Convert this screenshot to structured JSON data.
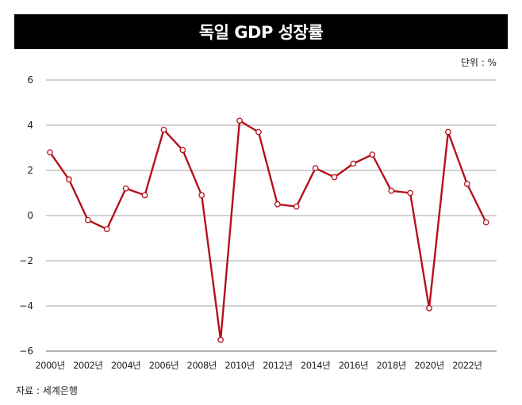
{
  "header": {
    "title": "독일 GDP 성장률"
  },
  "unit_label": "단위 : %",
  "source_label": "자료 : 세계은행",
  "colors": {
    "line": "#b5121b",
    "marker_fill": "#ffffff",
    "grid": "#888888",
    "title_bg": "#000000"
  },
  "chart_data": {
    "type": "line",
    "title": "독일 GDP 성장률",
    "xlabel": "",
    "ylabel": "%",
    "ylim": [
      -6,
      6
    ],
    "yticks": [
      6,
      4,
      2,
      0,
      -2,
      -4,
      -6
    ],
    "ytick_labels": [
      "6",
      "4",
      "2",
      "0",
      "−2",
      "−4",
      "−6"
    ],
    "xtick_years": [
      2000,
      2002,
      2004,
      2006,
      2008,
      2010,
      2012,
      2014,
      2016,
      2018,
      2020,
      2022
    ],
    "xtick_labels": [
      "2000년",
      "2002년",
      "2004년",
      "2006년",
      "2008년",
      "2010년",
      "2012년",
      "2014년",
      "2016년",
      "2018년",
      "2020년",
      "2022년"
    ],
    "series": [
      {
        "name": "독일 GDP 성장률",
        "x": [
          2000,
          2001,
          2002,
          2003,
          2004,
          2005,
          2006,
          2007,
          2008,
          2009,
          2010,
          2011,
          2012,
          2013,
          2014,
          2015,
          2016,
          2017,
          2018,
          2019,
          2020,
          2021,
          2022,
          2023
        ],
        "values": [
          2.8,
          1.6,
          -0.2,
          -0.6,
          1.2,
          0.9,
          3.8,
          2.9,
          0.9,
          -5.5,
          4.2,
          3.7,
          0.5,
          0.4,
          2.1,
          1.7,
          2.3,
          2.7,
          1.1,
          1.0,
          -4.1,
          3.7,
          1.4,
          -0.3
        ]
      }
    ]
  }
}
